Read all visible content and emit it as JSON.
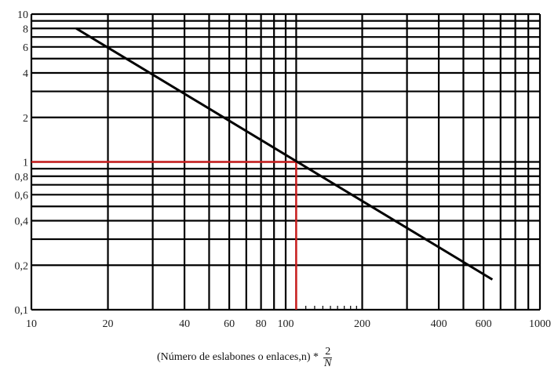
{
  "chart_data": {
    "type": "line",
    "title": "",
    "xscale": "log",
    "yscale": "log",
    "xlim": [
      10,
      1000
    ],
    "ylim": [
      0.1,
      10
    ],
    "grid": true,
    "xlabel_text": "(Número de eslabones o enlaces,n) *",
    "xlabel_fraction": {
      "numerator": "2",
      "denominator": "N"
    },
    "x_ticks": [
      {
        "v": 10,
        "label": "10"
      },
      {
        "v": 20,
        "label": "20"
      },
      {
        "v": 40,
        "label": "40"
      },
      {
        "v": 60,
        "label": "60"
      },
      {
        "v": 80,
        "label": "80"
      },
      {
        "v": 100,
        "label": "100"
      },
      {
        "v": 200,
        "label": "200"
      },
      {
        "v": 400,
        "label": "400"
      },
      {
        "v": 600,
        "label": "600"
      },
      {
        "v": 1000,
        "label": "1000"
      }
    ],
    "y_ticks": [
      {
        "v": 10,
        "label": "10"
      },
      {
        "v": 8,
        "label": "8"
      },
      {
        "v": 6,
        "label": "6"
      },
      {
        "v": 4,
        "label": "4"
      },
      {
        "v": 2,
        "label": "2"
      },
      {
        "v": 1,
        "label": "1"
      },
      {
        "v": 0.8,
        "label": "0,8"
      },
      {
        "v": 0.6,
        "label": "0,6"
      },
      {
        "v": 0.4,
        "label": "0,4"
      },
      {
        "v": 0.2,
        "label": "0,2"
      },
      {
        "v": 0.1,
        "label": "0,1"
      }
    ],
    "x_gridlines": [
      10,
      20,
      30,
      40,
      50,
      60,
      70,
      80,
      90,
      100,
      110,
      200,
      300,
      400,
      500,
      600,
      700,
      800,
      900,
      1000
    ],
    "y_gridlines": [
      0.1,
      0.2,
      0.3,
      0.4,
      0.5,
      0.6,
      0.7,
      0.8,
      0.9,
      1,
      2,
      3,
      4,
      5,
      6,
      7,
      8,
      9,
      10
    ],
    "series": [
      {
        "points": [
          [
            15,
            8
          ],
          [
            650,
            0.16
          ]
        ],
        "color": "#000000"
      }
    ],
    "reference": {
      "x": 110,
      "y": 1,
      "color": "#cc2020",
      "minor_ticks_x": [
        120,
        130,
        140,
        150,
        160,
        170,
        180,
        190
      ]
    }
  }
}
